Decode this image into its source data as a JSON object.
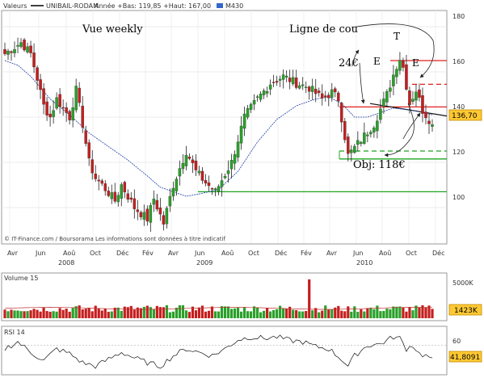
{
  "header": {
    "label": "Valeurs",
    "symbol": "UNIBAIL-RODAM",
    "range_text": "Année +Bas: 119,85 +Haut: 167,00",
    "ma_label": "M430",
    "colors": {
      "close": "#000000",
      "ma": "#1f3fa8",
      "ma_swatch": "#3366cc"
    }
  },
  "main_panel": {
    "yticks": [
      "180",
      "160",
      "140",
      "120",
      "100"
    ],
    "last_price": "136,70",
    "credit": "© IT-Finance.com / Boursorama Les informations sont données à titre indicatif"
  },
  "annotations": {
    "vue": "Vue weekly",
    "neckline": "Ligne de cou",
    "target": "Obj: 118€",
    "amount": "24€",
    "shoulder_left": "E",
    "head": "T",
    "shoulder_right": "E",
    "levels": [
      {
        "y": 165,
        "color": "#e02020",
        "dash": false
      },
      {
        "y": 154.5,
        "color": "#e02020",
        "dash": true
      },
      {
        "y": 144.5,
        "color": "#e02020",
        "dash": false
      },
      {
        "y": 125,
        "color": "#1fa51f",
        "dash": true
      },
      {
        "y": 121.5,
        "color": "#1fa51f",
        "dash": false
      },
      {
        "y": 107,
        "color": "#1fa51f",
        "dash": false
      }
    ]
  },
  "x_axis": {
    "months": [
      "Avr",
      "Jun",
      "Aoû",
      "Oct",
      "Déc",
      "Fév",
      "Avr",
      "Jun",
      "Aoû",
      "Oct",
      "Déc",
      "Fév",
      "Avr",
      "Jun",
      "Aoû",
      "Oct",
      "Déc"
    ],
    "years": [
      "2008",
      "2009",
      "2010"
    ]
  },
  "volume_panel": {
    "label": "Volume 15",
    "yticks": [
      "5000K"
    ],
    "last": "1423K"
  },
  "rsi_panel": {
    "label": "RSI 14",
    "yticks": [
      "60"
    ],
    "last": "41,8091"
  },
  "chart_data": {
    "type": "candlestick",
    "frequency": "weekly",
    "series": [
      {
        "name": "UNIBAIL-RODAM",
        "type": "candlestick"
      },
      {
        "name": "M430",
        "type": "line"
      }
    ],
    "price_range": [
      85,
      185
    ],
    "year_low": 119.85,
    "year_high": 167.0,
    "last_close": 136.7,
    "price_path_anchors": [
      [
        0,
        168
      ],
      [
        5,
        173
      ],
      [
        8,
        168
      ],
      [
        10,
        157
      ],
      [
        12,
        145
      ],
      [
        14,
        140
      ],
      [
        16,
        148
      ],
      [
        20,
        140
      ],
      [
        22,
        152
      ],
      [
        24,
        137
      ],
      [
        26,
        120
      ],
      [
        28,
        113
      ],
      [
        30,
        110
      ],
      [
        34,
        103
      ],
      [
        36,
        110
      ],
      [
        40,
        100
      ],
      [
        44,
        95
      ],
      [
        46,
        104
      ],
      [
        49,
        93
      ],
      [
        52,
        110
      ],
      [
        56,
        125
      ],
      [
        59,
        116
      ],
      [
        62,
        111
      ],
      [
        65,
        107
      ],
      [
        70,
        120
      ],
      [
        74,
        140
      ],
      [
        78,
        148
      ],
      [
        82,
        155
      ],
      [
        86,
        158
      ],
      [
        90,
        155
      ],
      [
        94,
        153
      ],
      [
        98,
        148
      ],
      [
        101,
        151
      ],
      [
        103,
        148
      ],
      [
        106,
        123
      ],
      [
        110,
        130
      ],
      [
        114,
        137
      ],
      [
        118,
        150
      ],
      [
        121,
        163
      ],
      [
        122,
        166
      ],
      [
        123,
        162
      ],
      [
        125,
        146
      ],
      [
        127,
        152
      ],
      [
        129,
        143
      ],
      [
        131,
        139
      ],
      [
        132,
        136.7
      ]
    ],
    "ma_path_anchors": [
      [
        0,
        165
      ],
      [
        4,
        163
      ],
      [
        8,
        158
      ],
      [
        14,
        148
      ],
      [
        20,
        141
      ],
      [
        26,
        133
      ],
      [
        32,
        127
      ],
      [
        38,
        121
      ],
      [
        44,
        114
      ],
      [
        48,
        109
      ],
      [
        52,
        107
      ],
      [
        56,
        105
      ],
      [
        60,
        106
      ],
      [
        66,
        108
      ],
      [
        72,
        116
      ],
      [
        78,
        129
      ],
      [
        84,
        139
      ],
      [
        90,
        145
      ],
      [
        96,
        148
      ],
      [
        100,
        149
      ],
      [
        104,
        146
      ],
      [
        108,
        140
      ],
      [
        112,
        140
      ],
      [
        116,
        142
      ],
      [
        120,
        144
      ],
      [
        126,
        143
      ],
      [
        132,
        141
      ]
    ],
    "volume_max": 6500,
    "volume_last": 1423,
    "volume_spike_weeks": [
      [
        94,
        5900
      ],
      [
        106,
        1800
      ]
    ],
    "rsi_range": [
      20,
      85
    ],
    "rsi_anchors": [
      [
        0,
        55
      ],
      [
        4,
        65
      ],
      [
        8,
        50
      ],
      [
        12,
        38
      ],
      [
        16,
        55
      ],
      [
        20,
        48
      ],
      [
        24,
        35
      ],
      [
        28,
        30
      ],
      [
        32,
        40
      ],
      [
        36,
        50
      ],
      [
        40,
        42
      ],
      [
        44,
        35
      ],
      [
        48,
        30
      ],
      [
        52,
        45
      ],
      [
        56,
        55
      ],
      [
        60,
        50
      ],
      [
        64,
        45
      ],
      [
        68,
        55
      ],
      [
        72,
        68
      ],
      [
        76,
        72
      ],
      [
        80,
        70
      ],
      [
        84,
        72
      ],
      [
        88,
        67
      ],
      [
        92,
        65
      ],
      [
        96,
        58
      ],
      [
        100,
        55
      ],
      [
        104,
        40
      ],
      [
        106,
        30
      ],
      [
        108,
        45
      ],
      [
        112,
        60
      ],
      [
        116,
        62
      ],
      [
        120,
        72
      ],
      [
        122,
        70
      ],
      [
        124,
        55
      ],
      [
        126,
        60
      ],
      [
        128,
        48
      ],
      [
        132,
        41.8
      ]
    ],
    "rsi_last": 41.8091
  }
}
